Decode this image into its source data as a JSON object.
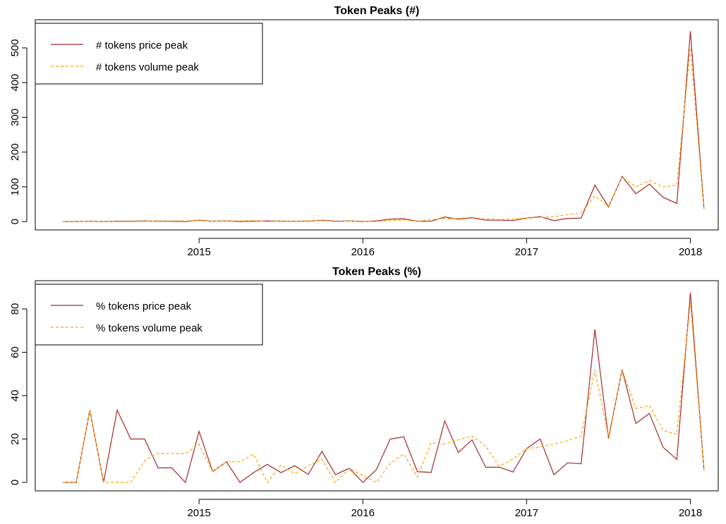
{
  "chart_data": [
    {
      "type": "line",
      "title": "Token Peaks (#)",
      "x": [
        2014.167,
        2014.25,
        2014.333,
        2014.417,
        2014.5,
        2014.583,
        2014.667,
        2014.75,
        2014.833,
        2014.917,
        2015,
        2015.083,
        2015.167,
        2015.25,
        2015.333,
        2015.417,
        2015.5,
        2015.583,
        2015.667,
        2015.75,
        2015.833,
        2015.917,
        2016,
        2016.083,
        2016.167,
        2016.25,
        2016.333,
        2016.417,
        2016.5,
        2016.583,
        2016.667,
        2016.75,
        2016.833,
        2016.917,
        2017,
        2017.083,
        2017.167,
        2017.25,
        2017.333,
        2017.417,
        2017.5,
        2017.583,
        2017.667,
        2017.75,
        2017.833,
        2017.917,
        2018,
        2018.083
      ],
      "series": [
        {
          "name": "# tokens price peak",
          "color": "#a52a2a",
          "dashed": false,
          "values": [
            0,
            0,
            1,
            0,
            1,
            1,
            2,
            1,
            1,
            0,
            4,
            1,
            2,
            0,
            1,
            2,
            1,
            1,
            1,
            4,
            1,
            2,
            0,
            2,
            7,
            8,
            1,
            1,
            13,
            7,
            11,
            4,
            4,
            3,
            10,
            14,
            3,
            9,
            10,
            105,
            42,
            130,
            80,
            108,
            70,
            52,
            548,
            36
          ]
        },
        {
          "name": "# tokens volume peak",
          "color": "#ffa500",
          "dashed": true,
          "values": [
            0,
            0,
            1,
            0,
            0,
            0,
            1,
            2,
            2,
            2,
            3,
            1,
            2,
            2,
            3,
            0,
            2,
            1,
            2,
            3,
            0,
            2,
            1,
            0,
            3,
            5,
            1,
            6,
            8,
            9,
            12,
            7,
            6,
            7,
            10,
            12,
            14,
            20,
            25,
            74,
            44,
            128,
            100,
            118,
            100,
            105,
            500,
            36
          ]
        }
      ],
      "xlim": [
        2014.0,
        2018.17
      ],
      "xticks": [
        2015,
        2016,
        2017,
        2018
      ],
      "ylim": [
        -24,
        581
      ],
      "yticks": [
        0,
        100,
        200,
        300,
        400,
        500
      ],
      "legend": "topleft"
    },
    {
      "type": "line",
      "title": "Token Peaks (%)",
      "x": [
        2014.167,
        2014.25,
        2014.333,
        2014.417,
        2014.5,
        2014.583,
        2014.667,
        2014.75,
        2014.833,
        2014.917,
        2015,
        2015.083,
        2015.167,
        2015.25,
        2015.333,
        2015.417,
        2015.5,
        2015.583,
        2015.667,
        2015.75,
        2015.833,
        2015.917,
        2016,
        2016.083,
        2016.167,
        2016.25,
        2016.333,
        2016.417,
        2016.5,
        2016.583,
        2016.667,
        2016.75,
        2016.833,
        2016.917,
        2017,
        2017.083,
        2017.167,
        2017.25,
        2017.333,
        2017.417,
        2017.5,
        2017.583,
        2017.667,
        2017.75,
        2017.833,
        2017.917,
        2018,
        2018.083
      ],
      "series": [
        {
          "name": "% tokens price peak",
          "color": "#a52a2a",
          "dashed": false,
          "values": [
            0,
            0,
            33.3,
            0,
            33.3,
            20,
            20,
            6.7,
            6.7,
            0,
            23.5,
            5,
            9.5,
            0,
            4.5,
            8.3,
            4.5,
            7.7,
            3.7,
            14.3,
            3.6,
            6.5,
            0,
            5.9,
            20,
            21,
            5,
            4.6,
            28.3,
            13.8,
            19.6,
            7,
            7,
            4.8,
            15.6,
            20,
            3.5,
            9,
            8.6,
            70.6,
            20.3,
            52,
            27.2,
            31.8,
            16.2,
            10.6,
            87.5,
            5.6
          ]
        },
        {
          "name": "% tokens volume peak",
          "color": "#ffa500",
          "dashed": true,
          "values": [
            0,
            0,
            33.3,
            0,
            0,
            0,
            10,
            13.3,
            13.3,
            13.3,
            17.6,
            5,
            9.5,
            9.5,
            13,
            0,
            8,
            4,
            7.7,
            10.7,
            0,
            6.5,
            3.2,
            0,
            8.8,
            13,
            2.5,
            18.2,
            17.7,
            19.6,
            21.4,
            16.7,
            7.5,
            10.7,
            15.6,
            16.3,
            17.7,
            19.3,
            21.3,
            51.8,
            21,
            52,
            34.1,
            35.4,
            24,
            22.2,
            83,
            5.6
          ]
        }
      ],
      "xlim": [
        2014.0,
        2018.17
      ],
      "xticks": [
        2015,
        2016,
        2017,
        2018
      ],
      "ylim": [
        -3.9,
        93
      ],
      "yticks": [
        0,
        20,
        40,
        60,
        80
      ],
      "legend": "topleft"
    }
  ]
}
